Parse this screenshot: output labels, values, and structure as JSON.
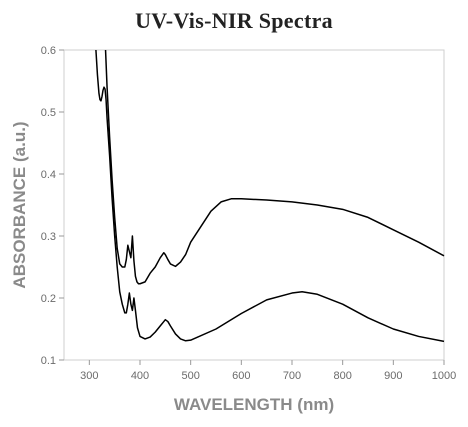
{
  "chart_data": {
    "type": "line",
    "title": "UV-Vis-NIR Spectra",
    "xlabel": "WAVELENGTH (nm)",
    "ylabel": "ABSORBANCE (a.u.)",
    "xlim": [
      250,
      1000
    ],
    "ylim": [
      0.1,
      0.6
    ],
    "x_ticks": [
      300,
      400,
      500,
      600,
      700,
      800,
      900,
      1000
    ],
    "y_ticks": [
      0.1,
      0.2,
      0.3,
      0.4,
      0.5,
      0.6
    ],
    "x_tick_labels": [
      "300",
      "400",
      "500",
      "600",
      "700",
      "800",
      "900",
      "1000"
    ],
    "y_tick_labels": [
      "0.1",
      "0.2",
      "0.3",
      "0.4",
      "0.5",
      "0.6"
    ],
    "grid": false,
    "legend": "none",
    "line_color": "#000000",
    "series": [
      {
        "x": [
          332,
          335,
          340,
          345,
          350,
          355,
          360,
          365,
          370,
          373,
          376,
          379,
          382,
          385,
          388,
          391,
          394,
          397,
          400,
          410,
          420,
          430,
          440,
          447,
          450,
          455,
          460,
          470,
          480,
          490,
          500,
          520,
          540,
          560,
          580,
          600,
          650,
          700,
          750,
          800,
          850,
          900,
          950,
          1000
        ],
        "y": [
          0.6,
          0.54,
          0.46,
          0.39,
          0.33,
          0.28,
          0.255,
          0.25,
          0.25,
          0.262,
          0.285,
          0.275,
          0.265,
          0.3,
          0.26,
          0.235,
          0.226,
          0.223,
          0.223,
          0.226,
          0.24,
          0.25,
          0.265,
          0.273,
          0.27,
          0.262,
          0.255,
          0.251,
          0.258,
          0.27,
          0.29,
          0.315,
          0.34,
          0.355,
          0.36,
          0.36,
          0.358,
          0.355,
          0.35,
          0.343,
          0.33,
          0.31,
          0.29,
          0.268
        ]
      },
      {
        "x": [
          313,
          316,
          319,
          321,
          323,
          325,
          327,
          329,
          331,
          333,
          335,
          340,
          345,
          350,
          355,
          360,
          365,
          370,
          373,
          376,
          379,
          382,
          385,
          388,
          391,
          395,
          400,
          410,
          420,
          430,
          440,
          447,
          450,
          455,
          460,
          470,
          480,
          490,
          500,
          550,
          600,
          650,
          700,
          720,
          750,
          800,
          850,
          900,
          950,
          1000
        ],
        "y": [
          0.6,
          0.56,
          0.53,
          0.52,
          0.518,
          0.525,
          0.535,
          0.54,
          0.537,
          0.52,
          0.49,
          0.43,
          0.36,
          0.3,
          0.25,
          0.21,
          0.19,
          0.176,
          0.176,
          0.19,
          0.208,
          0.19,
          0.18,
          0.2,
          0.18,
          0.152,
          0.138,
          0.134,
          0.137,
          0.145,
          0.155,
          0.162,
          0.165,
          0.162,
          0.155,
          0.142,
          0.134,
          0.131,
          0.132,
          0.15,
          0.175,
          0.197,
          0.208,
          0.21,
          0.206,
          0.19,
          0.168,
          0.15,
          0.138,
          0.13
        ]
      }
    ]
  }
}
